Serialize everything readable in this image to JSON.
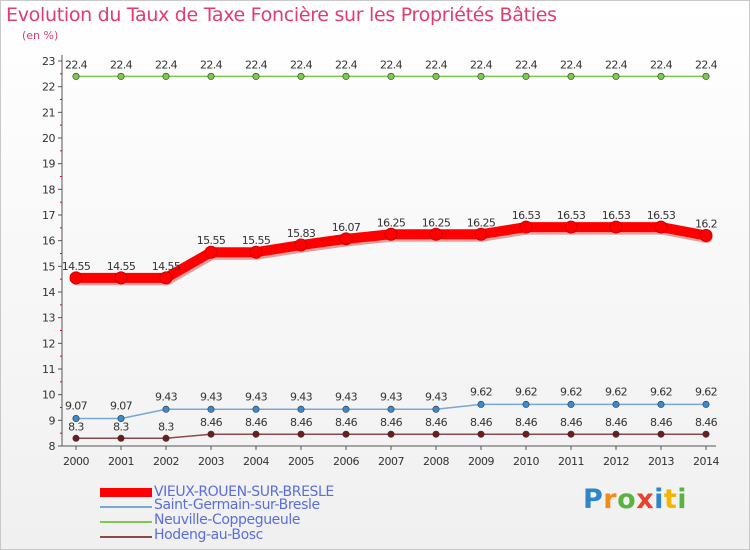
{
  "header": {
    "title": "Evolution du Taux de Taxe Foncière sur les Propriétés Bâties",
    "unit": "(en %)"
  },
  "logo": {
    "text": "Proxiti",
    "letters": [
      "P",
      "r",
      "o",
      "x",
      "i",
      "t",
      "i"
    ]
  },
  "chart_data": {
    "type": "line",
    "title": "Evolution du Taux de Taxe Foncière sur les Propriétés Bâties",
    "ylabel": "(en %)",
    "xlabel": "",
    "x": [
      "2000",
      "2001",
      "2002",
      "2003",
      "2004",
      "2005",
      "2006",
      "2007",
      "2008",
      "2009",
      "2010",
      "2011",
      "2012",
      "2013",
      "2014"
    ],
    "ylim": [
      8,
      23
    ],
    "yticks": [
      "8",
      "9",
      "10",
      "11",
      "12",
      "13",
      "14",
      "15",
      "16",
      "17",
      "18",
      "19",
      "20",
      "21",
      "22",
      "23"
    ],
    "grid": false,
    "legend_position": "bottom-left",
    "series": [
      {
        "name": "Neuville-Coppegueule",
        "color": "#7ec850",
        "marker_color": "#7ec850",
        "values": [
          22.4,
          22.4,
          22.4,
          22.4,
          22.4,
          22.4,
          22.4,
          22.4,
          22.4,
          22.4,
          22.4,
          22.4,
          22.4,
          22.4,
          22.4
        ],
        "labels": [
          "22.4",
          "22.4",
          "22.4",
          "22.4",
          "22.4",
          "22.4",
          "22.4",
          "22.4",
          "22.4",
          "22.4",
          "22.4",
          "22.4",
          "22.4",
          "22.4",
          "22.4"
        ]
      },
      {
        "name": "VIEUX-ROUEN-SUR-BRESLE",
        "color": "#ff0000",
        "marker_color": "#ff0000",
        "values": [
          14.55,
          14.55,
          14.55,
          15.55,
          15.55,
          15.83,
          16.07,
          16.25,
          16.25,
          16.25,
          16.53,
          16.53,
          16.53,
          16.53,
          16.2
        ],
        "labels": [
          "14.55",
          "14.55",
          "14.55",
          "15.55",
          "15.55",
          "15.83",
          "16.07",
          "16.25",
          "16.25",
          "16.25",
          "16.53",
          "16.53",
          "16.53",
          "16.53",
          "16.2"
        ]
      },
      {
        "name": "Saint-Germain-sur-Bresle",
        "color": "#78a8d8",
        "marker_color": "#3a8ad0",
        "values": [
          9.07,
          9.07,
          9.43,
          9.43,
          9.43,
          9.43,
          9.43,
          9.43,
          9.43,
          9.62,
          9.62,
          9.62,
          9.62,
          9.62,
          9.62
        ],
        "labels": [
          "9.07",
          "9.07",
          "9.43",
          "9.43",
          "9.43",
          "9.43",
          "9.43",
          "9.43",
          "9.43",
          "9.62",
          "9.62",
          "9.62",
          "9.62",
          "9.62",
          "9.62"
        ]
      },
      {
        "name": "Hodeng-au-Bosc",
        "color": "#8a4a4a",
        "marker_color": "#6a1e1e",
        "values": [
          8.3,
          8.3,
          8.3,
          8.46,
          8.46,
          8.46,
          8.46,
          8.46,
          8.46,
          8.46,
          8.46,
          8.46,
          8.46,
          8.46,
          8.46
        ],
        "labels": [
          "8.3",
          "8.3",
          "8.3",
          "8.46",
          "8.46",
          "8.46",
          "8.46",
          "8.46",
          "8.46",
          "8.46",
          "8.46",
          "8.46",
          "8.46",
          "8.46",
          "8.46"
        ]
      }
    ],
    "legend": [
      {
        "name": "VIEUX-ROUEN-SUR-BRESLE",
        "color": "#ff0000"
      },
      {
        "name": "Saint-Germain-sur-Bresle",
        "color": "#78a8d8"
      },
      {
        "name": "Neuville-Coppegueule",
        "color": "#7ec850"
      },
      {
        "name": "Hodeng-au-Bosc",
        "color": "#8a4a4a"
      }
    ]
  }
}
